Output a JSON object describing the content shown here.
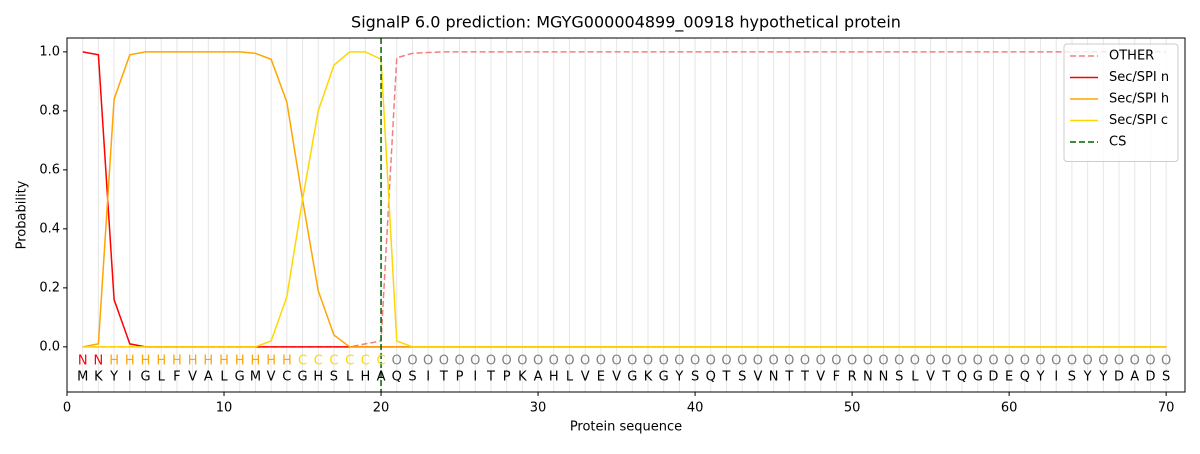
{
  "chart_data": {
    "type": "line",
    "title": "SignalP 6.0 prediction: MGYG000004899_00918 hypothetical protein",
    "xlabel": "Protein sequence",
    "ylabel": "Probability",
    "x": [
      1,
      2,
      3,
      4,
      5,
      6,
      7,
      8,
      9,
      10,
      11,
      12,
      13,
      14,
      15,
      16,
      17,
      18,
      19,
      20,
      21,
      22,
      23,
      24,
      25,
      26,
      27,
      28,
      29,
      30,
      31,
      32,
      33,
      34,
      35,
      36,
      37,
      38,
      39,
      40,
      41,
      42,
      43,
      44,
      45,
      46,
      47,
      48,
      49,
      50,
      51,
      52,
      53,
      54,
      55,
      56,
      57,
      58,
      59,
      60,
      61,
      62,
      63,
      64,
      65,
      66,
      67,
      68,
      69,
      70
    ],
    "series": [
      {
        "name": "OTHER",
        "color": "#f08080",
        "linestyle": "dashed",
        "values": [
          0,
          0,
          0,
          0,
          0,
          0,
          0,
          0,
          0,
          0,
          0,
          0,
          0,
          0,
          0,
          0,
          0,
          0,
          0.01,
          0.02,
          0.98,
          0.995,
          0.998,
          1,
          1,
          1,
          1,
          1,
          1,
          1,
          1,
          1,
          1,
          1,
          1,
          1,
          1,
          1,
          1,
          1,
          1,
          1,
          1,
          1,
          1,
          1,
          1,
          1,
          1,
          1,
          1,
          1,
          1,
          1,
          1,
          1,
          1,
          1,
          1,
          1,
          1,
          1,
          1,
          1,
          1,
          1,
          1,
          1,
          1,
          1
        ]
      },
      {
        "name": "Sec/SPI n",
        "color": "#ff0000",
        "linestyle": "solid",
        "values": [
          1,
          0.99,
          0.16,
          0.01,
          0,
          0,
          0,
          0,
          0,
          0,
          0,
          0,
          0,
          0,
          0,
          0,
          0,
          0,
          0,
          0,
          0,
          0,
          0,
          0,
          0,
          0,
          0,
          0,
          0,
          0,
          0,
          0,
          0,
          0,
          0,
          0,
          0,
          0,
          0,
          0,
          0,
          0,
          0,
          0,
          0,
          0,
          0,
          0,
          0,
          0,
          0,
          0,
          0,
          0,
          0,
          0,
          0,
          0,
          0,
          0,
          0,
          0,
          0,
          0,
          0,
          0,
          0,
          0,
          0,
          0
        ]
      },
      {
        "name": "Sec/SPI h",
        "color": "#ffa500",
        "linestyle": "solid",
        "values": [
          0,
          0.01,
          0.84,
          0.99,
          1,
          1,
          1,
          1,
          1,
          1,
          1,
          0.995,
          0.975,
          0.83,
          0.5,
          0.19,
          0.04,
          0,
          0,
          0,
          0,
          0,
          0,
          0,
          0,
          0,
          0,
          0,
          0,
          0,
          0,
          0,
          0,
          0,
          0,
          0,
          0,
          0,
          0,
          0,
          0,
          0,
          0,
          0,
          0,
          0,
          0,
          0,
          0,
          0,
          0,
          0,
          0,
          0,
          0,
          0,
          0,
          0,
          0,
          0,
          0,
          0,
          0,
          0,
          0,
          0,
          0,
          0,
          0,
          0
        ]
      },
      {
        "name": "Sec/SPI c",
        "color": "#ffd700",
        "linestyle": "solid",
        "values": [
          0,
          0,
          0,
          0,
          0,
          0,
          0,
          0,
          0,
          0,
          0,
          0,
          0.02,
          0.17,
          0.5,
          0.8,
          0.955,
          1,
          1,
          0.975,
          0.02,
          0,
          0,
          0,
          0,
          0,
          0,
          0,
          0,
          0,
          0,
          0,
          0,
          0,
          0,
          0,
          0,
          0,
          0,
          0,
          0,
          0,
          0,
          0,
          0,
          0,
          0,
          0,
          0,
          0,
          0,
          0,
          0,
          0,
          0,
          0,
          0,
          0,
          0,
          0,
          0,
          0,
          0,
          0,
          0,
          0,
          0,
          0,
          0,
          0
        ]
      }
    ],
    "cs": {
      "name": "CS",
      "x": 20,
      "color": "#006400",
      "linestyle": "dashed"
    },
    "labels": [
      "N",
      "N",
      "H",
      "H",
      "H",
      "H",
      "H",
      "H",
      "H",
      "H",
      "H",
      "H",
      "H",
      "H",
      "C",
      "C",
      "C",
      "C",
      "C",
      "C",
      "O",
      "O",
      "O",
      "O",
      "O",
      "O",
      "O",
      "O",
      "O",
      "O",
      "O",
      "O",
      "O",
      "O",
      "O",
      "O",
      "O",
      "O",
      "O",
      "O",
      "O",
      "O",
      "O",
      "O",
      "O",
      "O",
      "O",
      "O",
      "O",
      "O",
      "O",
      "O",
      "O",
      "O",
      "O",
      "O",
      "O",
      "O",
      "O",
      "O",
      "O",
      "O",
      "O",
      "O",
      "O",
      "O",
      "O",
      "O",
      "O",
      "O"
    ],
    "label_colors": {
      "N": "#ff0000",
      "H": "#ffa500",
      "C": "#ffd700",
      "O": "#808080"
    },
    "sequence": [
      "M",
      "K",
      "Y",
      "I",
      "G",
      "L",
      "F",
      "V",
      "A",
      "L",
      "G",
      "M",
      "V",
      "C",
      "G",
      "H",
      "S",
      "L",
      "H",
      "A",
      "Q",
      "S",
      "I",
      "T",
      "P",
      "I",
      "T",
      "P",
      "K",
      "A",
      "H",
      "L",
      "V",
      "E",
      "V",
      "G",
      "K",
      "G",
      "Y",
      "S",
      "Q",
      "T",
      "S",
      "V",
      "N",
      "T",
      "T",
      "V",
      "F",
      "R",
      "N",
      "N",
      "S",
      "L",
      "V",
      "T",
      "Q",
      "G",
      "D",
      "E",
      "Q",
      "Y",
      "I",
      "S",
      "Y",
      "Y",
      "D",
      "A",
      "D",
      "S"
    ],
    "xlim": [
      0,
      71.2
    ],
    "ylim": [
      -0.153,
      1.047
    ],
    "xticks": [
      0,
      10,
      20,
      30,
      40,
      50,
      60,
      70
    ],
    "yticks": [
      {
        "value": 0,
        "label": "0.0"
      },
      0.2,
      0.4,
      0.6,
      0.8,
      {
        "value": 1,
        "label": "1.0"
      }
    ],
    "residue_grid": true,
    "legend": "upper right"
  }
}
